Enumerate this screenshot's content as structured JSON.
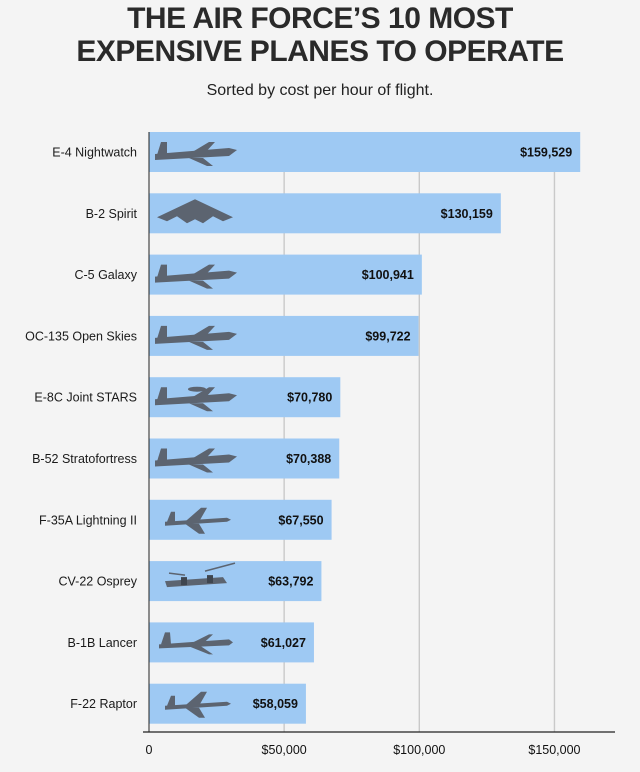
{
  "title": "THE AIR FORCE’S 10 MOST EXPENSIVE PLANES TO OPERATE",
  "subtitle": "Sorted by cost per hour of flight.",
  "colors": {
    "bar": "#9ec9f3",
    "grid": "#c9c9c9",
    "axis": "#222222",
    "background": "#f4f4f4",
    "plane": "#5c6470"
  },
  "chart_data": {
    "type": "bar",
    "orientation": "horizontal",
    "title": "THE AIR FORCE’S 10 MOST EXPENSIVE PLANES TO OPERATE",
    "subtitle": "Sorted by cost per hour of flight.",
    "categories": [
      "E-4 Nightwatch",
      "B-2 Spirit",
      "C-5 Galaxy",
      "OC-135 Open Skies",
      "E-8C Joint STARS",
      "B-52 Stratofortress",
      "F-35A Lightning II",
      "CV-22 Osprey",
      "B-1B Lancer",
      "F-22 Raptor"
    ],
    "values": [
      159529,
      130159,
      100941,
      99722,
      70780,
      70388,
      67550,
      63792,
      61027,
      58059
    ],
    "value_labels": [
      "$159,529",
      "$130,159",
      "$100,941",
      "$99,722",
      "$70,780",
      "$70,388",
      "$67,550",
      "$63,792",
      "$61,027",
      "$58,059"
    ],
    "xlim": [
      0,
      165000
    ],
    "xticks": [
      0,
      50000,
      100000,
      150000
    ],
    "xtick_labels": [
      "0",
      "$50,000",
      "$100,000",
      "$150,000"
    ],
    "grid": true,
    "plane_icons": [
      "airliner-icon",
      "stealth-bomber-icon",
      "cargo-plane-icon",
      "reconnaissance-plane-icon",
      "awacs-plane-icon",
      "bomber-icon",
      "fighter-jet-icon",
      "tiltrotor-icon",
      "swing-wing-bomber-icon",
      "fighter-jet-icon"
    ]
  }
}
